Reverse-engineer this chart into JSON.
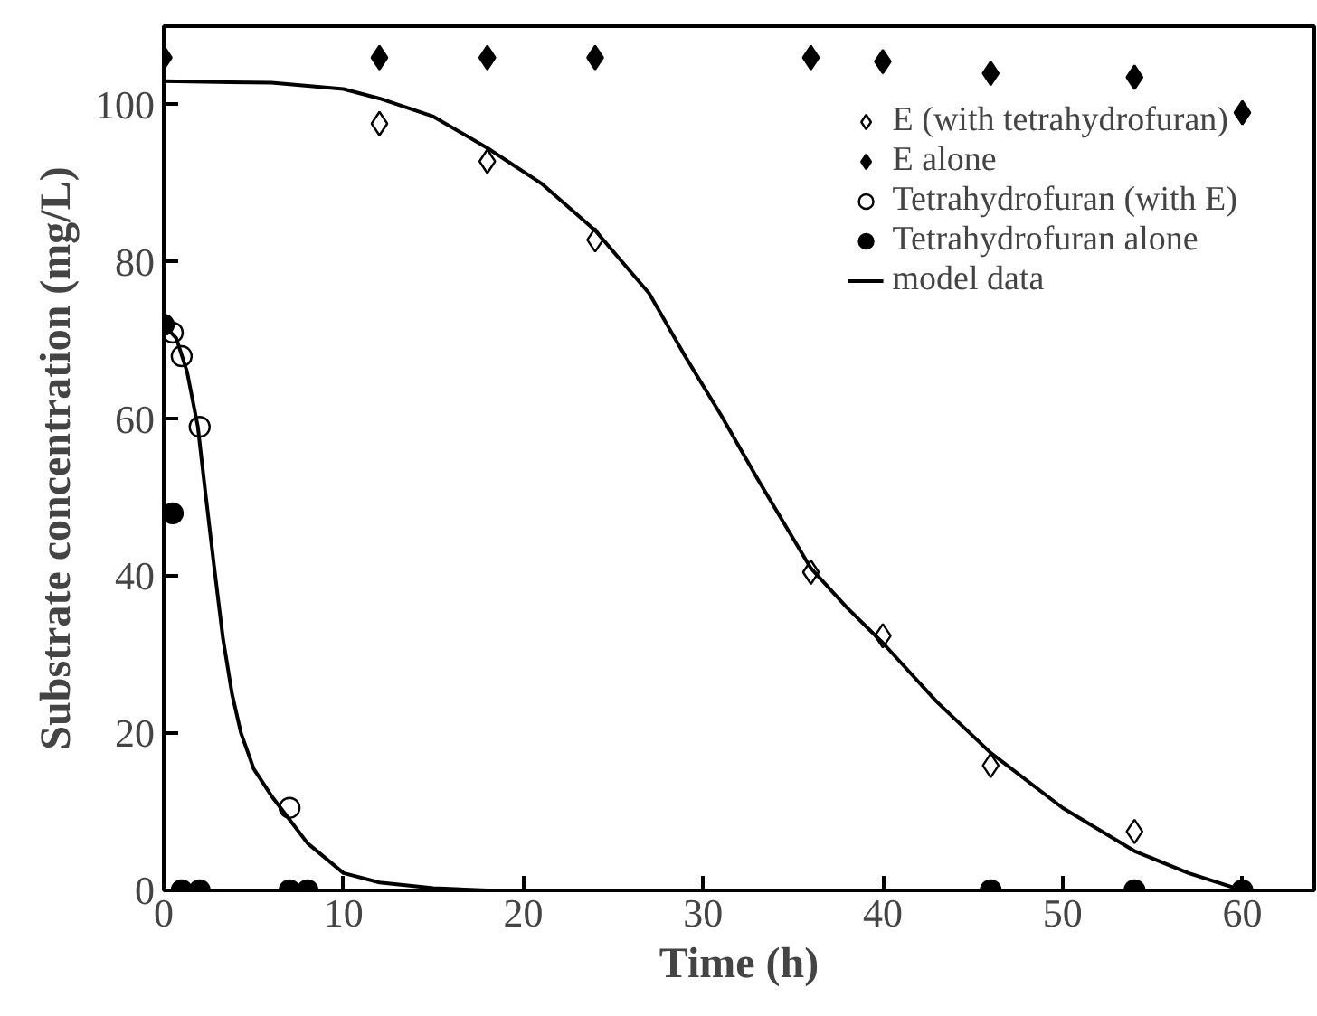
{
  "chart_data": {
    "type": "scatter",
    "xlabel": "Time (h)",
    "ylabel": "Substrate concentration (mg/L)",
    "xlim": [
      0,
      64
    ],
    "ylim": [
      0,
      110
    ],
    "xticks": [
      0,
      10,
      20,
      30,
      40,
      50,
      60
    ],
    "yticks": [
      0,
      20,
      40,
      60,
      80,
      100
    ],
    "grid": false,
    "legend": "top right",
    "series": [
      {
        "name": "E (with tetrahydrofuran)",
        "color": "#ffffff",
        "marker": "diamond",
        "x": [
          12,
          18,
          24,
          36,
          40,
          46,
          54
        ],
        "values": [
          97.6,
          92.8,
          82.8,
          40.5,
          32.4,
          15.9,
          7.5
        ]
      },
      {
        "name": "E alone",
        "color": "#000000",
        "marker": "diamond",
        "x": [
          0,
          12,
          18,
          24,
          36,
          40,
          46,
          54,
          60
        ],
        "values": [
          106,
          106,
          106,
          106,
          106,
          105.5,
          104,
          103.5,
          99
        ]
      },
      {
        "name": "Tetrahydrofuran (with E)",
        "color": "#ffffff",
        "marker": "circle",
        "x": [
          0.5,
          1,
          2,
          7
        ],
        "values": [
          71,
          68,
          59,
          10.5
        ]
      },
      {
        "name": "Tetrahydrofuran alone",
        "color": "#000000",
        "marker": "circle",
        "x": [
          0,
          0.5,
          1,
          2,
          7,
          8,
          46,
          54,
          60
        ],
        "values": [
          72,
          48,
          0,
          0,
          0,
          0,
          0,
          0,
          0
        ]
      },
      {
        "name": "model data",
        "type": "line",
        "color": "#000000",
        "x": [
          0,
          6,
          10,
          12,
          15,
          18,
          21,
          24,
          27,
          29,
          31,
          33,
          36,
          38,
          40,
          43,
          46,
          50,
          54,
          57,
          60
        ],
        "values": [
          103,
          102.8,
          102,
          100.8,
          98.5,
          94.5,
          90,
          84,
          76,
          68,
          60.5,
          52.5,
          41,
          36,
          31.5,
          24,
          17.5,
          10.5,
          5,
          2.2,
          0
        ]
      },
      {
        "type": "line",
        "color": "#000000",
        "x": [
          0,
          0.7,
          1.3,
          1.9,
          2.3,
          2.8,
          3.3,
          3.8,
          4.3,
          5,
          6,
          7,
          8,
          10,
          12,
          15,
          18
        ],
        "values": [
          72,
          70.3,
          66,
          59,
          51,
          41.3,
          32,
          25,
          20,
          15.5,
          12,
          9,
          6,
          2.2,
          1,
          0.3,
          0
        ]
      }
    ]
  }
}
